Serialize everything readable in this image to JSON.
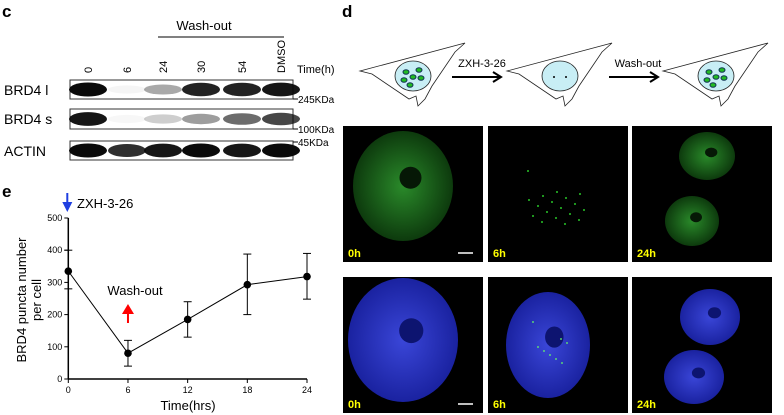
{
  "panel_c": {
    "letter": "c",
    "group_label": "Wash-out",
    "lanes": [
      "0",
      "6",
      "24",
      "30",
      "54",
      "DMSO"
    ],
    "time_label": "Time(h)",
    "rows": [
      {
        "label": "BRD4 l",
        "marker": "245KDa"
      },
      {
        "label": "BRD4 s",
        "marker": "100KDa"
      },
      {
        "label": "ACTIN",
        "marker": "45KDa"
      }
    ]
  },
  "panel_d": {
    "letter": "d",
    "step1": "ZXH-3-26",
    "step2": "Wash-out",
    "time_labels": [
      "0h",
      "6h",
      "24h"
    ],
    "colors": {
      "label": "#ffff00",
      "green": "#2ea82e",
      "blue": "#2a3ad6",
      "nucleus": "#c8eef5"
    }
  },
  "panel_e": {
    "letter": "e",
    "treatment_label": "ZXH-3-26",
    "washout_label": "Wash-out"
  },
  "chart_data": {
    "type": "line",
    "xlabel": "Time(hrs)",
    "ylabel": "BRD4 puncta number per cell",
    "ylabel_lines": [
      "BRD4 puncta number",
      "per cell"
    ],
    "x": [
      0,
      6,
      12,
      18,
      24
    ],
    "y": [
      335,
      80,
      185,
      293,
      318
    ],
    "err_low": [
      280,
      40,
      130,
      200,
      248
    ],
    "err_high": [
      400,
      120,
      240,
      388,
      390
    ],
    "xticks": [
      "0",
      "6",
      "12",
      "18",
      "24"
    ],
    "yticks": [
      "0",
      "100",
      "200",
      "300",
      "400",
      "500"
    ],
    "xlim": [
      0,
      24
    ],
    "ylim": [
      0,
      500
    ],
    "grid": false,
    "annotations": [
      {
        "text": "ZXH-3-26",
        "x": 0,
        "arrow": "down",
        "color": "#1f3fe0"
      },
      {
        "text": "Wash-out",
        "x": 6,
        "arrow": "up",
        "color": "#ff0000"
      }
    ]
  }
}
